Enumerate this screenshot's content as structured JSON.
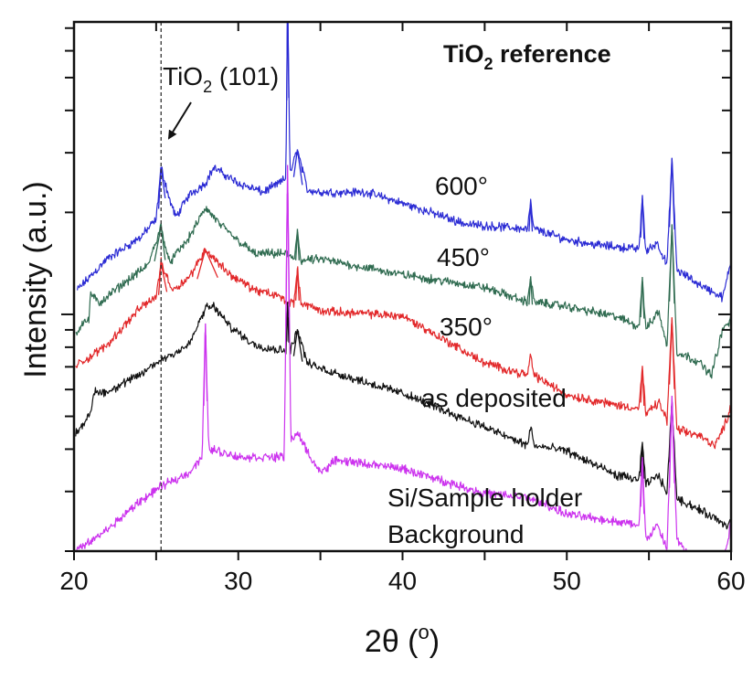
{
  "chart_data": {
    "type": "line",
    "title": {
      "main": "TiO",
      "sub": "2",
      "rest": " reference"
    },
    "xlabel": {
      "main": "2θ (",
      "sup": "o",
      "rest": ")"
    },
    "ylabel": "Intensity (a.u.)",
    "xlim": [
      20,
      60
    ],
    "ylim": [
      200,
      7300
    ],
    "yscale": "log",
    "y_tick_labels_shown": false,
    "grid": false,
    "legend": "none (inline labels)",
    "x_ticks": [
      20,
      30,
      40,
      50,
      60
    ],
    "x_tick_labels": [
      "20",
      "30",
      "40",
      "50",
      "60"
    ],
    "x_minor_ticks": [
      25,
      35,
      45,
      55
    ],
    "reference_line": {
      "x": 25.3,
      "style": "dashed",
      "color": "#333333"
    },
    "annotation": {
      "main": "TiO",
      "sub": "2",
      "rest": " (101)",
      "arrow_to_x": 25.3
    },
    "series": [
      {
        "name": "600°",
        "color": "#2b2bd4",
        "points": [
          [
            20.2,
            1180
          ],
          [
            22,
            1455
          ],
          [
            24,
            1682
          ],
          [
            25,
            1902
          ],
          [
            25.3,
            2725
          ],
          [
            25.8,
            2195
          ],
          [
            26.2,
            1935
          ],
          [
            27,
            2250
          ],
          [
            28,
            2440
          ],
          [
            28.5,
            2710
          ],
          [
            30,
            2440
          ],
          [
            31.5,
            2294
          ],
          [
            32.5,
            2440
          ],
          [
            32.9,
            2520
          ],
          [
            33.0,
            9000
          ],
          [
            33.15,
            2600
          ],
          [
            33.6,
            3070
          ],
          [
            34.2,
            2335
          ],
          [
            35,
            2294
          ],
          [
            37.8,
            2294
          ],
          [
            40.5,
            2090
          ],
          [
            43.9,
            1845
          ],
          [
            47.6,
            1788
          ],
          [
            47.8,
            2130
          ],
          [
            48.0,
            1788
          ],
          [
            50,
            1662
          ],
          [
            52,
            1600
          ],
          [
            54.4,
            1560
          ],
          [
            54.6,
            2250
          ],
          [
            54.8,
            1530
          ],
          [
            55.5,
            1630
          ],
          [
            56.1,
            1395
          ],
          [
            56.4,
            2900
          ],
          [
            56.7,
            1350
          ],
          [
            58,
            1232
          ],
          [
            59.5,
            1120
          ],
          [
            60,
            1440
          ]
        ]
      },
      {
        "name": "450°",
        "color": "#2f6b50",
        "points": [
          [
            20.1,
            875
          ],
          [
            20.6,
            962
          ],
          [
            20.9,
            950
          ],
          [
            21.0,
            1158
          ],
          [
            21.5,
            1075
          ],
          [
            23,
            1232
          ],
          [
            24.5,
            1395
          ],
          [
            25.3,
            1820
          ],
          [
            25.8,
            1420
          ],
          [
            27,
            1682
          ],
          [
            28,
            2060
          ],
          [
            29,
            1820
          ],
          [
            30,
            1650
          ],
          [
            31,
            1510
          ],
          [
            33,
            1510
          ],
          [
            33.4,
            1440
          ],
          [
            33.6,
            1788
          ],
          [
            33.8,
            1440
          ],
          [
            35,
            1455
          ],
          [
            40,
            1310
          ],
          [
            45,
            1200
          ],
          [
            47.6,
            1088
          ],
          [
            47.8,
            1295
          ],
          [
            48.0,
            1088
          ],
          [
            50,
            1055
          ],
          [
            53,
            985
          ],
          [
            54.4,
            920
          ],
          [
            54.6,
            1290
          ],
          [
            54.8,
            904
          ],
          [
            55.6,
            1023
          ],
          [
            56.1,
            798
          ],
          [
            56.4,
            1845
          ],
          [
            56.7,
            774
          ],
          [
            58,
            727
          ],
          [
            58.8,
            662
          ],
          [
            59.5,
            904
          ],
          [
            60,
            962
          ]
        ]
      },
      {
        "name": "350°",
        "color": "#e2282a",
        "points": [
          [
            20.1,
            705
          ],
          [
            21,
            750
          ],
          [
            22,
            812
          ],
          [
            24,
            1042
          ],
          [
            25,
            1130
          ],
          [
            25.3,
            1420
          ],
          [
            26,
            1180
          ],
          [
            27,
            1285
          ],
          [
            28,
            1553
          ],
          [
            29.5,
            1310
          ],
          [
            31,
            1180
          ],
          [
            32.5,
            1130
          ],
          [
            33.0,
            1088
          ],
          [
            33.4,
            1088
          ],
          [
            33.6,
            1370
          ],
          [
            33.8,
            1088
          ],
          [
            35,
            1023
          ],
          [
            40,
            990
          ],
          [
            45,
            718
          ],
          [
            47.6,
            662
          ],
          [
            47.8,
            760
          ],
          [
            48.0,
            662
          ],
          [
            50,
            578
          ],
          [
            53,
            540
          ],
          [
            54.4,
            528
          ],
          [
            54.6,
            705
          ],
          [
            54.8,
            505
          ],
          [
            55.6,
            550
          ],
          [
            56.1,
            486
          ],
          [
            56.4,
            980
          ],
          [
            56.7,
            456
          ],
          [
            58,
            440
          ],
          [
            59,
            412
          ],
          [
            59.5,
            456
          ],
          [
            60,
            533
          ]
        ]
      },
      {
        "name": "as deposited",
        "color": "#111111",
        "points": [
          [
            20.1,
            447
          ],
          [
            21,
            505
          ],
          [
            21.2,
            590
          ],
          [
            22,
            590
          ],
          [
            24,
            662
          ],
          [
            25.3,
            735
          ],
          [
            27,
            812
          ],
          [
            28,
            1042
          ],
          [
            28.5,
            1055
          ],
          [
            29.5,
            920
          ],
          [
            31,
            812
          ],
          [
            32.5,
            785
          ],
          [
            32.9,
            785
          ],
          [
            33.0,
            1088
          ],
          [
            33.15,
            774
          ],
          [
            33.6,
            904
          ],
          [
            34.2,
            718
          ],
          [
            35,
            692
          ],
          [
            40,
            585
          ],
          [
            45,
            465
          ],
          [
            47.6,
            410
          ],
          [
            47.8,
            470
          ],
          [
            48.0,
            410
          ],
          [
            50,
            395
          ],
          [
            53,
            335
          ],
          [
            54.4,
            325
          ],
          [
            54.6,
            420
          ],
          [
            54.8,
            315
          ],
          [
            55.6,
            335
          ],
          [
            56.1,
            296
          ],
          [
            56.4,
            560
          ],
          [
            56.7,
            287
          ],
          [
            58,
            266
          ],
          [
            59,
            250
          ],
          [
            59.8,
            238
          ],
          [
            60,
            245
          ]
        ]
      },
      {
        "name": "Si/Sample holder Background",
        "label_lines": [
          "Si/Sample holder",
          "Background"
        ],
        "color": "#cc33ee",
        "points": [
          [
            20.1,
            200
          ],
          [
            21,
            213
          ],
          [
            22,
            231
          ],
          [
            24,
            280
          ],
          [
            25.3,
            310
          ],
          [
            27,
            341
          ],
          [
            27.8,
            379
          ],
          [
            28.0,
            940
          ],
          [
            28.2,
            403
          ],
          [
            30,
            379
          ],
          [
            32.8,
            379
          ],
          [
            33.0,
            2761
          ],
          [
            33.2,
            429
          ],
          [
            33.6,
            445
          ],
          [
            34.5,
            372
          ],
          [
            35,
            341
          ],
          [
            36,
            372
          ],
          [
            40,
            350
          ],
          [
            45,
            296
          ],
          [
            47.8,
            287
          ],
          [
            50,
            257
          ],
          [
            53,
            245
          ],
          [
            54.4,
            238
          ],
          [
            54.6,
            379
          ],
          [
            54.8,
            216
          ],
          [
            55.5,
            238
          ],
          [
            56.1,
            203
          ],
          [
            56.4,
            575
          ],
          [
            56.7,
            216
          ],
          [
            57.5,
            192
          ],
          [
            58.5,
            174
          ],
          [
            59.5,
            192
          ],
          [
            59.8,
            216
          ],
          [
            60,
            245
          ]
        ]
      }
    ]
  }
}
